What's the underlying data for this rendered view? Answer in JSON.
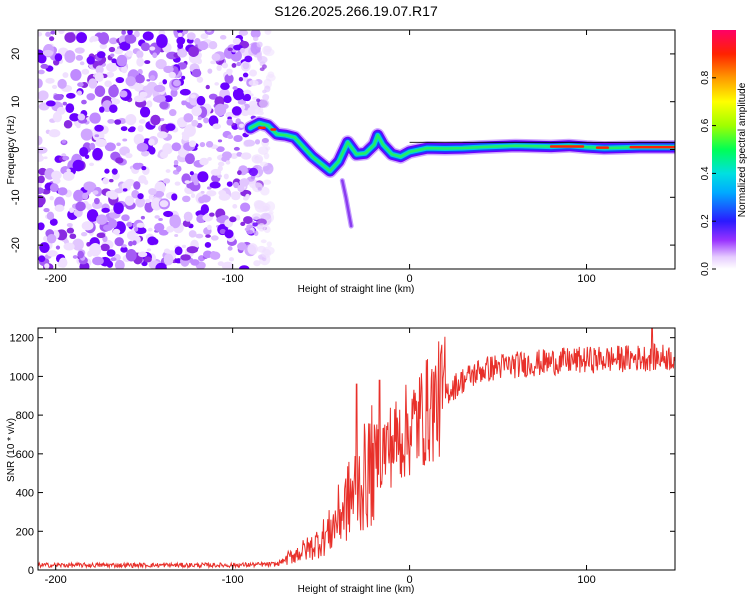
{
  "title": "S126.2025.266.19.07.R17",
  "chart_data": [
    {
      "type": "heatmap",
      "panel": "top",
      "xlabel": "Height of straight line (km)",
      "ylabel": "Frequency (Hz)",
      "xlim": [
        -210,
        150
      ],
      "ylim": [
        -25,
        25
      ],
      "xticks": [
        -200,
        -100,
        0,
        100
      ],
      "yticks": [
        -20,
        -10,
        0,
        10,
        20
      ],
      "noise_region_x": [
        -210,
        -78
      ],
      "ridge_track": [
        {
          "x": -90,
          "y": 4.5
        },
        {
          "x": -85,
          "y": 5.5
        },
        {
          "x": -80,
          "y": 5.0
        },
        {
          "x": -75,
          "y": 3.2
        },
        {
          "x": -70,
          "y": 3.0
        },
        {
          "x": -65,
          "y": 2.5
        },
        {
          "x": -60,
          "y": 0.5
        },
        {
          "x": -55,
          "y": -1.5
        },
        {
          "x": -50,
          "y": -3.0
        },
        {
          "x": -45,
          "y": -4.5
        },
        {
          "x": -40,
          "y": -2.5
        },
        {
          "x": -35,
          "y": 1.5
        },
        {
          "x": -30,
          "y": -1.0
        },
        {
          "x": -25,
          "y": -0.8
        },
        {
          "x": -20,
          "y": 1.0
        },
        {
          "x": -18,
          "y": 3.0
        },
        {
          "x": -15,
          "y": 1.0
        },
        {
          "x": -10,
          "y": -1.0
        },
        {
          "x": -5,
          "y": -1.5
        },
        {
          "x": 0,
          "y": -0.5
        },
        {
          "x": 10,
          "y": 0.3
        },
        {
          "x": 20,
          "y": 0.2
        },
        {
          "x": 30,
          "y": 0.3
        },
        {
          "x": 40,
          "y": 0.5
        },
        {
          "x": 60,
          "y": 0.8
        },
        {
          "x": 80,
          "y": 0.6
        },
        {
          "x": 90,
          "y": 0.8
        },
        {
          "x": 100,
          "y": 0.5
        },
        {
          "x": 110,
          "y": 0.3
        },
        {
          "x": 130,
          "y": 0.5
        },
        {
          "x": 150,
          "y": 0.5
        }
      ],
      "ridge_offshoot": [
        {
          "x": -38,
          "y": -6.5
        },
        {
          "x": -36,
          "y": -10
        },
        {
          "x": -34,
          "y": -14
        },
        {
          "x": -33,
          "y": -16
        }
      ],
      "colorbar": {
        "label": "Normalized spectral amplitude",
        "range": [
          0,
          1
        ],
        "ticks": [
          "0.0",
          "0.2",
          "0.4",
          "0.6",
          "0.8"
        ]
      }
    },
    {
      "type": "line",
      "panel": "bottom",
      "xlabel": "Height of straight line (km)",
      "ylabel": "SNR (10 * v/v)",
      "xlim": [
        -210,
        150
      ],
      "ylim": [
        0,
        1250
      ],
      "xticks": [
        -200,
        -100,
        0,
        100
      ],
      "yticks": [
        0,
        200,
        400,
        600,
        800,
        1000,
        1200
      ],
      "color": "#e8302a",
      "series_envelope": [
        {
          "x": -210,
          "y": 25
        },
        {
          "x": -100,
          "y": 25
        },
        {
          "x": -75,
          "y": 30
        },
        {
          "x": -65,
          "y": 80
        },
        {
          "x": -55,
          "y": 120
        },
        {
          "x": -45,
          "y": 200
        },
        {
          "x": -40,
          "y": 280
        },
        {
          "x": -35,
          "y": 350
        },
        {
          "x": -30,
          "y": 420
        },
        {
          "x": -25,
          "y": 480
        },
        {
          "x": -20,
          "y": 560
        },
        {
          "x": -15,
          "y": 620
        },
        {
          "x": -10,
          "y": 650
        },
        {
          "x": -5,
          "y": 690
        },
        {
          "x": 0,
          "y": 730
        },
        {
          "x": 10,
          "y": 820
        },
        {
          "x": 20,
          "y": 910
        },
        {
          "x": 30,
          "y": 980
        },
        {
          "x": 40,
          "y": 1030
        },
        {
          "x": 50,
          "y": 1050
        },
        {
          "x": 60,
          "y": 1060
        },
        {
          "x": 80,
          "y": 1075
        },
        {
          "x": 100,
          "y": 1085
        },
        {
          "x": 130,
          "y": 1095
        },
        {
          "x": 150,
          "y": 1100
        }
      ],
      "spikes": [
        {
          "x": -30,
          "y": 960
        },
        {
          "x": -17,
          "y": 980
        },
        {
          "x": 137,
          "y": 1250
        }
      ]
    }
  ]
}
